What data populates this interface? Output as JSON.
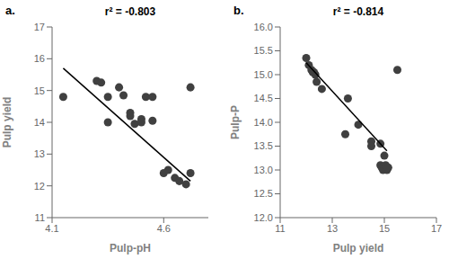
{
  "chart_data": [
    {
      "type": "scatter",
      "title": "r² = -0.803",
      "annotations": [
        "a."
      ],
      "x_label": "Pulp-pH",
      "y_label": "Pulp yield",
      "grid": false,
      "xlim": [
        4.1,
        4.8
      ],
      "ylim": [
        11,
        17
      ],
      "xticks": [
        4.1,
        4.6
      ],
      "yticks": [
        11,
        12,
        13,
        14,
        15,
        16,
        17
      ],
      "series": [
        {
          "type": "scatter",
          "color": "#404040",
          "x": [
            4.15,
            4.3,
            4.32,
            4.35,
            4.35,
            4.4,
            4.42,
            4.45,
            4.45,
            4.47,
            4.5,
            4.5,
            4.52,
            4.55,
            4.55,
            4.6,
            4.62,
            4.65,
            4.67,
            4.7,
            4.72,
            4.72
          ],
          "values": [
            14.8,
            15.3,
            15.25,
            14.8,
            14.0,
            15.1,
            14.85,
            14.3,
            14.2,
            13.95,
            14.1,
            14.0,
            14.8,
            14.8,
            14.05,
            12.4,
            12.5,
            12.25,
            12.15,
            12.05,
            12.4,
            15.1
          ]
        },
        {
          "type": "line",
          "color": "#000000",
          "x": [
            4.15,
            4.72
          ],
          "values": [
            15.7,
            12.15
          ]
        }
      ]
    },
    {
      "type": "scatter",
      "title": "r² = -0.814",
      "annotations": [
        "b."
      ],
      "x_label": "Pulp yield",
      "y_label": "Pulp-P",
      "grid": false,
      "xlim": [
        11,
        17
      ],
      "ylim": [
        12,
        16
      ],
      "xticks": [
        11,
        13,
        15,
        17
      ],
      "yticks": [
        {
          "value": 12,
          "label": "12.0"
        },
        12.5,
        {
          "value": 13,
          "label": "13.0"
        },
        13.5,
        {
          "value": 14,
          "label": "14.0"
        },
        14.5,
        {
          "value": 15,
          "label": "15.0"
        },
        15.5,
        {
          "value": 16,
          "label": "16.0"
        }
      ],
      "series": [
        {
          "type": "scatter",
          "color": "#404040",
          "x": [
            12.0,
            12.1,
            12.2,
            12.25,
            12.3,
            12.35,
            12.4,
            12.6,
            13.5,
            13.6,
            14.0,
            14.5,
            14.5,
            14.85,
            14.85,
            14.9,
            14.95,
            15.0,
            15.05,
            15.1,
            15.15,
            15.5
          ],
          "values": [
            15.35,
            15.2,
            15.1,
            15.05,
            15.05,
            15.0,
            14.85,
            14.7,
            13.75,
            14.5,
            13.95,
            13.6,
            13.5,
            13.1,
            13.55,
            13.05,
            13.0,
            13.3,
            13.1,
            13.0,
            13.05,
            15.1
          ]
        },
        {
          "type": "line",
          "color": "#000000",
          "x": [
            12.0,
            15.1
          ],
          "values": [
            15.25,
            13.4
          ]
        }
      ]
    }
  ]
}
